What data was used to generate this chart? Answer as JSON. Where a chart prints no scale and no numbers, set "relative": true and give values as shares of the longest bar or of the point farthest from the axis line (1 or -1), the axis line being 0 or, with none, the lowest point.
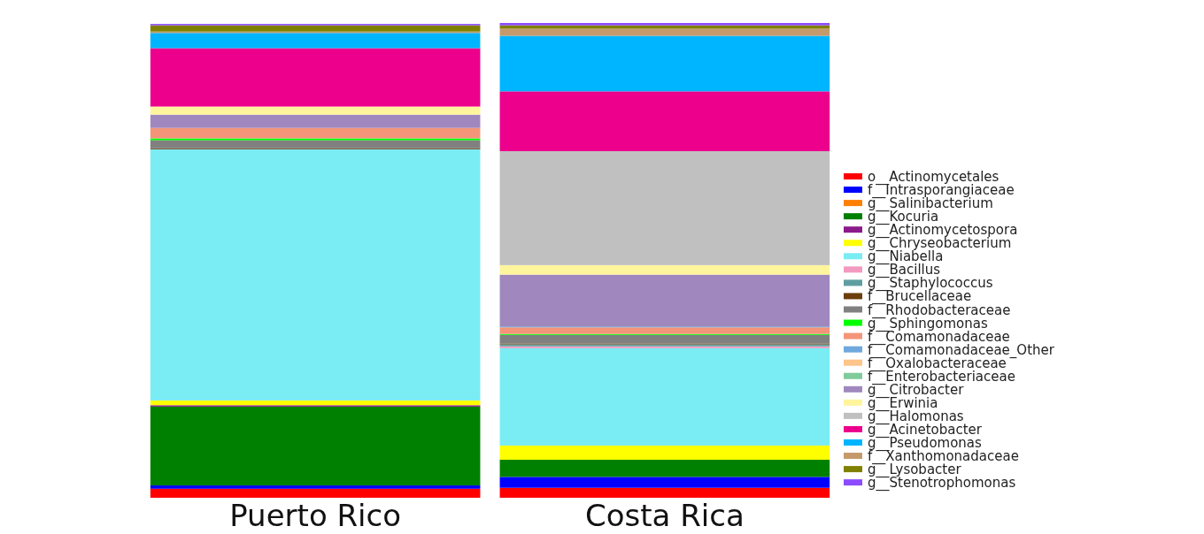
{
  "chart_data": {
    "type": "bar",
    "stacked": true,
    "relative": true,
    "legend": "right",
    "categories": [
      "Puerto Rico",
      "Costa Rica"
    ],
    "series": [
      {
        "name": "o__Actinomycetales",
        "color": "#ff0000",
        "values": [
          0.019,
          0.021
        ]
      },
      {
        "name": "f__Intrasporangiaceae",
        "color": "#0000ff",
        "values": [
          0.007,
          0.023
        ]
      },
      {
        "name": "g__Salinibacterium",
        "color": "#ff7f00",
        "values": [
          0,
          0
        ]
      },
      {
        "name": "g__Kocuria",
        "color": "#008000",
        "values": [
          0.166,
          0.036
        ]
      },
      {
        "name": "g__Actinomycetospora",
        "color": "#8b1a8b",
        "values": [
          0.003,
          0
        ]
      },
      {
        "name": "g__Chryseobacterium",
        "color": "#ffff00",
        "values": [
          0.01,
          0.03
        ]
      },
      {
        "name": "g__Niabella",
        "color": "#7aecf4",
        "values": [
          0.529,
          0.205
        ]
      },
      {
        "name": "g__Bacillus",
        "color": "#f39ac0",
        "values": [
          0,
          0.004
        ]
      },
      {
        "name": "g__Staphylococcus",
        "color": "#5f9ea0",
        "values": [
          0,
          0.004
        ]
      },
      {
        "name": "f__Brucellaceae",
        "color": "#6b3e0b",
        "values": [
          0.002,
          0.002
        ]
      },
      {
        "name": "f__Rhodobacteraceae",
        "color": "#808080",
        "values": [
          0.017,
          0.018
        ]
      },
      {
        "name": "g__Sphingomonas",
        "color": "#00ff00",
        "values": [
          0.004,
          0.002
        ]
      },
      {
        "name": "f__Comamonadaceae",
        "color": "#f4957a",
        "values": [
          0.022,
          0.014
        ]
      },
      {
        "name": "f__Comamonadaceae_Other",
        "color": "#6fa8dc",
        "values": [
          0,
          0.002
        ]
      },
      {
        "name": "f__Oxalobacteraceae",
        "color": "#fdc589",
        "values": [
          0,
          0
        ]
      },
      {
        "name": "f__Enterobacteriaceae",
        "color": "#7fcb9c",
        "values": [
          0,
          0
        ]
      },
      {
        "name": "g__Citrobacter",
        "color": "#a088bf",
        "values": [
          0.028,
          0.109
        ]
      },
      {
        "name": "g__Erwinia",
        "color": "#fff59d",
        "values": [
          0.017,
          0.02
        ]
      },
      {
        "name": "g__Halomonas",
        "color": "#c0c0c0",
        "values": [
          0,
          0.24
        ]
      },
      {
        "name": "g__Acinetobacter",
        "color": "#ec008c",
        "values": [
          0.123,
          0.126
        ]
      },
      {
        "name": "g__Pseudomonas",
        "color": "#00b5ff",
        "values": [
          0.032,
          0.117
        ]
      },
      {
        "name": "f__Xanthomonadaceae",
        "color": "#c49a6c",
        "values": [
          0.003,
          0.015
        ]
      },
      {
        "name": "g__Lysobacter",
        "color": "#808000",
        "values": [
          0.013,
          0.007
        ]
      },
      {
        "name": "g__Stenotrophomonas",
        "color": "#8c4bff",
        "values": [
          0.003,
          0.005
        ]
      }
    ]
  }
}
